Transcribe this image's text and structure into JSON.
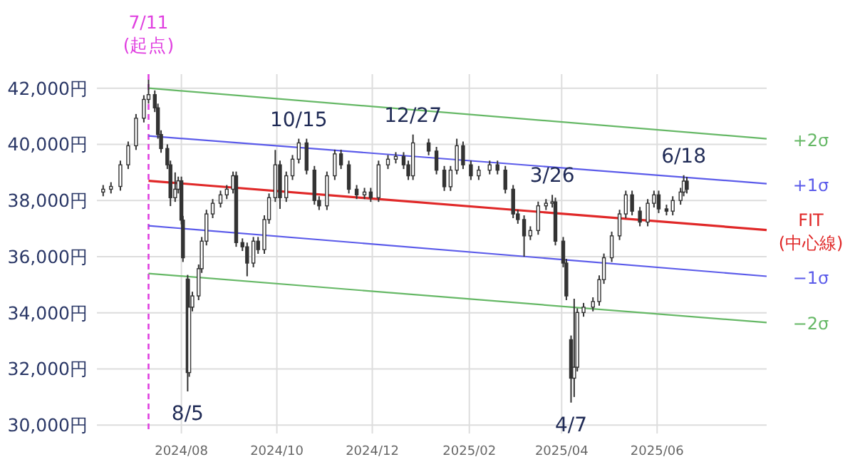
{
  "chart_data": {
    "type": "candlestick",
    "xlim": [
      "2024-06-08",
      "2025-08-10"
    ],
    "xticks": [
      {
        "value": "2024-08-01",
        "label": "2024/08"
      },
      {
        "value": "2024-10-01",
        "label": "2024/10"
      },
      {
        "value": "2024-12-01",
        "label": "2024/12"
      },
      {
        "value": "2025-02-01",
        "label": "2025/02"
      },
      {
        "value": "2025-04-01",
        "label": "2025/04"
      },
      {
        "value": "2025-06-01",
        "label": "2025/06"
      }
    ],
    "ylim": [
      29700,
      42500
    ],
    "yticks": [
      {
        "value": 30000,
        "label": "30,000円"
      },
      {
        "value": 32000,
        "label": "32,000円"
      },
      {
        "value": 34000,
        "label": "34,000円"
      },
      {
        "value": 36000,
        "label": "36,000円"
      },
      {
        "value": 38000,
        "label": "38,000円"
      },
      {
        "value": 40000,
        "label": "40,000円"
      },
      {
        "value": 42000,
        "label": "42,000円"
      }
    ],
    "grid": true,
    "series": [
      {
        "type": "candlestick",
        "color": "#333333",
        "x": [
          "2024-06-12",
          "2024-06-17",
          "2024-06-23",
          "2024-06-28",
          "2024-07-03",
          "2024-07-08",
          "2024-07-11",
          "2024-07-15",
          "2024-07-17",
          "2024-07-19",
          "2024-07-23",
          "2024-07-25",
          "2024-07-28",
          "2024-07-30",
          "2024-08-01",
          "2024-08-02",
          "2024-08-05",
          "2024-08-06",
          "2024-08-08",
          "2024-08-12",
          "2024-08-14",
          "2024-08-17",
          "2024-08-21",
          "2024-08-26",
          "2024-08-30",
          "2024-09-03",
          "2024-09-05",
          "2024-09-09",
          "2024-09-12",
          "2024-09-16",
          "2024-09-19",
          "2024-09-23",
          "2024-09-26",
          "2024-09-30",
          "2024-10-03",
          "2024-10-07",
          "2024-10-11",
          "2024-10-15",
          "2024-10-20",
          "2024-10-25",
          "2024-10-28",
          "2024-11-02",
          "2024-11-07",
          "2024-11-11",
          "2024-11-16",
          "2024-11-21",
          "2024-11-26",
          "2024-11-30",
          "2024-12-05",
          "2024-12-11",
          "2024-12-16",
          "2024-12-21",
          "2024-12-24",
          "2024-12-27",
          "2025-01-06",
          "2025-01-11",
          "2025-01-16",
          "2025-01-20",
          "2025-01-24",
          "2025-01-28",
          "2025-02-02",
          "2025-02-07",
          "2025-02-14",
          "2025-02-19",
          "2025-02-24",
          "2025-03-01",
          "2025-03-04",
          "2025-03-08",
          "2025-03-12",
          "2025-03-17",
          "2025-03-22",
          "2025-03-26",
          "2025-03-28",
          "2025-04-02",
          "2025-04-04",
          "2025-04-07",
          "2025-04-09",
          "2025-04-11",
          "2025-04-15",
          "2025-04-21",
          "2025-04-25",
          "2025-04-28",
          "2025-05-03",
          "2025-05-08",
          "2025-05-12",
          "2025-05-16",
          "2025-05-21",
          "2025-05-26",
          "2025-05-30",
          "2025-06-02",
          "2025-06-07",
          "2025-06-11",
          "2025-06-16",
          "2025-06-18",
          "2025-06-20"
        ],
        "ohlc": [
          [
            38300,
            38550,
            38150,
            38400
          ],
          [
            38400,
            38650,
            38250,
            38500
          ],
          [
            38500,
            39420,
            38350,
            39270
          ],
          [
            39270,
            40100,
            39120,
            39950
          ],
          [
            39950,
            41080,
            39800,
            40930
          ],
          [
            40930,
            41750,
            40780,
            41600
          ],
          [
            41600,
            42300,
            41450,
            41770
          ],
          [
            41770,
            41920,
            41150,
            41300
          ],
          [
            41300,
            41450,
            40200,
            40350
          ],
          [
            40350,
            40500,
            39700,
            39850
          ],
          [
            39850,
            40000,
            39120,
            39270
          ],
          [
            39270,
            39420,
            37800,
            38100
          ],
          [
            38100,
            39000,
            37950,
            38400
          ],
          [
            38400,
            38850,
            38250,
            38700
          ],
          [
            38700,
            38850,
            37150,
            37300
          ],
          [
            37300,
            37450,
            35810,
            35960
          ],
          [
            35200,
            35350,
            31200,
            31870
          ],
          [
            31870,
            35200,
            31720,
            34200
          ],
          [
            34200,
            34750,
            34050,
            34600
          ],
          [
            34600,
            35720,
            34450,
            35570
          ],
          [
            35570,
            36700,
            35420,
            36550
          ],
          [
            36550,
            37670,
            36400,
            37520
          ],
          [
            37520,
            38050,
            37370,
            37900
          ],
          [
            37900,
            38350,
            37750,
            38200
          ],
          [
            38200,
            38550,
            38050,
            38400
          ],
          [
            38400,
            39030,
            38250,
            38880
          ],
          [
            38880,
            39030,
            36350,
            36500
          ],
          [
            36500,
            36650,
            36200,
            36350
          ],
          [
            36350,
            36500,
            35300,
            35770
          ],
          [
            35770,
            36700,
            35620,
            36550
          ],
          [
            36550,
            36700,
            36100,
            36250
          ],
          [
            36250,
            37470,
            36100,
            37320
          ],
          [
            37320,
            38250,
            37170,
            38100
          ],
          [
            38100,
            39800,
            37950,
            39270
          ],
          [
            39270,
            39420,
            37700,
            38100
          ],
          [
            38100,
            39030,
            37950,
            38880
          ],
          [
            38880,
            39620,
            38730,
            39470
          ],
          [
            39470,
            40200,
            39320,
            40050
          ],
          [
            40050,
            40200,
            38930,
            39080
          ],
          [
            39080,
            39230,
            37850,
            38000
          ],
          [
            38000,
            38150,
            37660,
            37810
          ],
          [
            37810,
            39030,
            37660,
            38880
          ],
          [
            38880,
            39810,
            38730,
            39660
          ],
          [
            39660,
            39810,
            39120,
            39270
          ],
          [
            39270,
            39420,
            38250,
            38400
          ],
          [
            38400,
            38550,
            38050,
            38200
          ],
          [
            38200,
            38450,
            38050,
            38300
          ],
          [
            38300,
            38450,
            37950,
            38100
          ],
          [
            38100,
            39420,
            37950,
            39270
          ],
          [
            39270,
            39620,
            39120,
            39470
          ],
          [
            39470,
            39720,
            39320,
            39570
          ],
          [
            39570,
            39720,
            39120,
            39270
          ],
          [
            39270,
            39420,
            38730,
            38880
          ],
          [
            38880,
            40350,
            38730,
            40050
          ],
          [
            40050,
            40200,
            39610,
            39760
          ],
          [
            39760,
            39910,
            38930,
            39080
          ],
          [
            39080,
            39230,
            38340,
            38490
          ],
          [
            38490,
            39230,
            38340,
            39080
          ],
          [
            39080,
            40200,
            38930,
            39950
          ],
          [
            39950,
            40100,
            39120,
            39270
          ],
          [
            39270,
            39420,
            38730,
            38880
          ],
          [
            38880,
            39230,
            38730,
            39080
          ],
          [
            39080,
            39420,
            38930,
            39270
          ],
          [
            39270,
            39420,
            38930,
            39080
          ],
          [
            39080,
            39230,
            38250,
            38400
          ],
          [
            38400,
            38550,
            37370,
            37520
          ],
          [
            37520,
            37670,
            37170,
            37320
          ],
          [
            37320,
            37470,
            36000,
            36740
          ],
          [
            36740,
            37080,
            36590,
            36930
          ],
          [
            36930,
            37960,
            36780,
            37810
          ],
          [
            37810,
            38050,
            37660,
            37900
          ],
          [
            37900,
            38200,
            37750,
            37950
          ],
          [
            37950,
            38100,
            36400,
            36550
          ],
          [
            36550,
            36700,
            35620,
            35770
          ],
          [
            35770,
            35920,
            34450,
            34600
          ],
          [
            33040,
            33190,
            30800,
            31670
          ],
          [
            31670,
            34500,
            31000,
            32060
          ],
          [
            32060,
            34160,
            31910,
            34010
          ],
          [
            34010,
            34350,
            33860,
            34200
          ],
          [
            34200,
            34550,
            34050,
            34400
          ],
          [
            34400,
            35330,
            34250,
            35180
          ],
          [
            35180,
            36110,
            35030,
            35960
          ],
          [
            35960,
            36890,
            35810,
            36740
          ],
          [
            36740,
            37670,
            36590,
            37520
          ],
          [
            37520,
            38350,
            37370,
            38200
          ],
          [
            38200,
            38350,
            37470,
            37620
          ],
          [
            37620,
            37770,
            37080,
            37230
          ],
          [
            37230,
            38050,
            37080,
            37900
          ],
          [
            37900,
            38350,
            37750,
            38200
          ],
          [
            38200,
            38350,
            37550,
            37700
          ],
          [
            37700,
            37850,
            37470,
            37620
          ],
          [
            37620,
            38150,
            37470,
            38000
          ],
          [
            38000,
            38450,
            37850,
            38300
          ],
          [
            38300,
            38900,
            38150,
            38690
          ],
          [
            38690,
            38840,
            38250,
            38400
          ]
        ]
      },
      {
        "type": "line",
        "name": "+2σ",
        "color": "#66b866",
        "x": [
          "2024-07-11",
          "2025-08-10"
        ],
        "values": [
          42000,
          40200
        ]
      },
      {
        "type": "line",
        "name": "+1σ",
        "color": "#5b5bea",
        "x": [
          "2024-07-11",
          "2025-08-10"
        ],
        "values": [
          40300,
          38600
        ]
      },
      {
        "type": "line",
        "name": "FIT (中心線)",
        "color": "#e02828",
        "x": [
          "2024-07-11",
          "2025-08-10"
        ],
        "values": [
          38700,
          36950
        ]
      },
      {
        "type": "line",
        "name": "−1σ",
        "color": "#5b5bea",
        "x": [
          "2024-07-11",
          "2025-08-10"
        ],
        "values": [
          37100,
          35300
        ]
      },
      {
        "type": "line",
        "name": "−2σ",
        "color": "#66b866",
        "x": [
          "2024-07-11",
          "2025-08-10"
        ],
        "values": [
          35400,
          33650
        ]
      }
    ],
    "ref_lines": [
      {
        "axis": "x",
        "value": "2024-07-11",
        "label": "7/11 (起点)",
        "color": "#e040e0",
        "line_style": "dashed"
      }
    ],
    "annotations": [
      {
        "text": "8/5",
        "x": "2024-08-05",
        "y": 31200
      },
      {
        "text": "10/15",
        "x": "2024-10-15",
        "y": 40200
      },
      {
        "text": "12/27",
        "x": "2024-12-27",
        "y": 40350
      },
      {
        "text": "3/26",
        "x": "2025-03-26",
        "y": 38200
      },
      {
        "text": "4/7",
        "x": "2025-04-07",
        "y": 30800
      },
      {
        "text": "6/18",
        "x": "2025-06-18",
        "y": 38900
      }
    ]
  }
}
